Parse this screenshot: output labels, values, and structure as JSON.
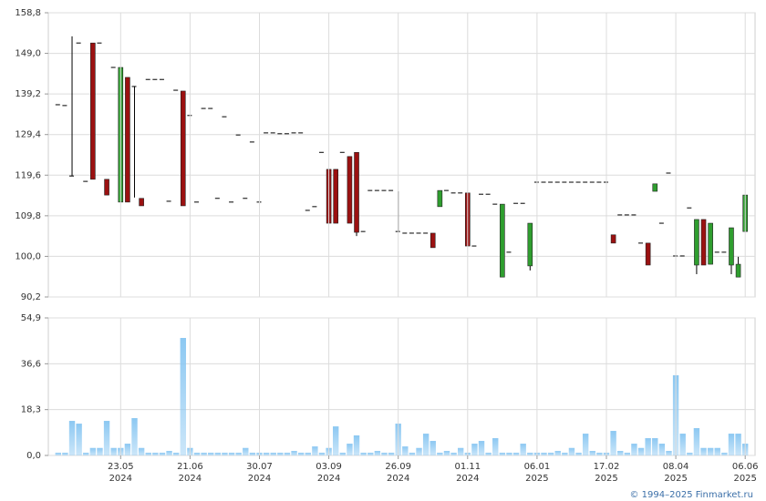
{
  "chart_data": [
    {
      "type": "candlestick",
      "open": [
        136.6,
        136.4,
        119.4,
        151.5,
        118.1,
        151.5,
        151.5,
        118.6,
        145.6,
        113.1,
        143.2,
        141.0,
        114.0,
        142.7,
        142.7,
        142.7,
        113.3,
        140.1,
        139.9,
        134.0,
        113.1,
        135.7,
        135.7,
        114.0,
        133.7,
        113.1,
        129.3,
        114.0,
        127.6,
        113.1,
        129.8,
        129.8,
        129.6,
        129.6,
        129.8,
        129.8,
        111.1,
        112.0,
        125.1,
        121.0,
        121.0,
        125.1,
        124.1,
        125.1,
        106.0,
        115.9,
        115.9,
        115.9,
        115.9,
        106.0,
        105.6,
        105.6,
        105.6,
        105.6,
        105.6,
        112.0,
        115.9,
        115.3,
        115.3,
        115.3,
        102.5,
        115.0,
        115.0,
        112.6,
        95.0,
        101.0,
        112.8,
        112.8,
        97.7,
        117.9,
        117.9,
        117.9,
        117.9,
        117.9,
        117.9,
        117.9,
        117.9,
        117.9,
        117.9,
        117.9,
        105.2,
        110.0,
        110.0,
        110.0,
        103.2,
        103.2,
        115.7,
        108.0,
        120.1,
        100.1,
        100.1,
        111.7,
        97.9,
        108.9,
        98.1,
        101.0,
        101.0,
        97.9,
        95.0,
        106.0
      ],
      "high": [
        136.6,
        136.4,
        153.1,
        151.5,
        118.1,
        151.5,
        151.5,
        118.6,
        145.6,
        145.6,
        143.2,
        141.0,
        114.0,
        142.7,
        142.7,
        142.7,
        113.3,
        140.1,
        139.9,
        134.0,
        113.1,
        135.7,
        135.7,
        114.0,
        133.7,
        113.1,
        129.3,
        114.0,
        127.6,
        113.1,
        129.8,
        129.8,
        129.6,
        129.6,
        129.8,
        129.8,
        111.1,
        112.0,
        125.1,
        121.0,
        121.0,
        125.1,
        124.1,
        125.1,
        106.0,
        115.9,
        115.9,
        115.9,
        115.9,
        115.7,
        105.6,
        105.6,
        105.6,
        105.6,
        105.6,
        115.9,
        115.9,
        115.3,
        115.3,
        115.3,
        102.5,
        115.0,
        115.0,
        112.6,
        112.6,
        101.0,
        112.8,
        112.8,
        108.0,
        117.9,
        117.9,
        117.9,
        117.9,
        117.9,
        117.9,
        117.9,
        117.9,
        117.9,
        117.9,
        117.9,
        105.2,
        110.0,
        110.0,
        110.0,
        103.2,
        103.2,
        117.5,
        108.0,
        120.1,
        100.1,
        100.1,
        111.7,
        108.9,
        108.9,
        108.0,
        101.0,
        101.0,
        106.9,
        99.9,
        114.8
      ],
      "low": [
        136.6,
        136.4,
        119.4,
        151.5,
        118.1,
        118.6,
        151.5,
        114.8,
        145.6,
        113.1,
        113.1,
        114.2,
        112.2,
        142.7,
        142.7,
        142.7,
        113.3,
        140.1,
        112.2,
        134.0,
        113.1,
        135.7,
        135.7,
        114.0,
        133.7,
        113.1,
        129.3,
        114.0,
        127.6,
        113.1,
        129.8,
        129.8,
        129.6,
        129.6,
        129.8,
        129.8,
        111.1,
        112.0,
        125.1,
        108.0,
        108.0,
        125.1,
        108.0,
        104.9,
        106.0,
        115.9,
        115.9,
        115.9,
        115.9,
        106.0,
        105.6,
        105.6,
        105.6,
        105.6,
        102.1,
        112.0,
        115.9,
        115.3,
        115.3,
        102.5,
        102.5,
        115.0,
        115.0,
        112.6,
        95.0,
        101.0,
        112.8,
        112.8,
        96.6,
        117.9,
        117.9,
        117.9,
        117.9,
        117.9,
        117.9,
        117.9,
        117.9,
        117.9,
        117.9,
        117.9,
        103.2,
        110.0,
        110.0,
        110.0,
        103.2,
        97.9,
        115.7,
        108.0,
        120.1,
        100.1,
        100.1,
        111.7,
        95.7,
        97.9,
        98.1,
        101.0,
        101.0,
        95.7,
        95.0,
        106.0
      ],
      "close": [
        136.6,
        136.4,
        119.4,
        151.5,
        118.1,
        118.6,
        151.5,
        114.8,
        145.6,
        145.6,
        113.1,
        141.0,
        112.2,
        142.7,
        142.7,
        142.7,
        113.3,
        140.1,
        112.2,
        134.0,
        113.1,
        135.7,
        135.7,
        114.0,
        133.7,
        113.1,
        129.3,
        114.0,
        127.6,
        113.1,
        129.8,
        129.8,
        129.6,
        129.6,
        129.8,
        129.8,
        111.1,
        112.0,
        125.1,
        108.0,
        108.0,
        125.1,
        108.0,
        105.8,
        106.0,
        115.9,
        115.9,
        115.9,
        115.9,
        106.0,
        105.6,
        105.6,
        105.6,
        105.6,
        102.1,
        115.9,
        115.9,
        115.3,
        115.3,
        102.5,
        102.5,
        115.0,
        115.0,
        112.6,
        112.6,
        101.0,
        112.8,
        112.8,
        108.0,
        117.9,
        117.9,
        117.9,
        117.9,
        117.9,
        117.9,
        117.9,
        117.9,
        117.9,
        117.9,
        117.9,
        103.2,
        110.0,
        110.0,
        110.0,
        103.2,
        97.9,
        117.5,
        108.0,
        120.1,
        100.1,
        100.1,
        111.7,
        108.9,
        97.9,
        108.0,
        101.0,
        101.0,
        106.9,
        98.1,
        114.8
      ],
      "up_color": "#2f9e2f",
      "down_color": "#9b1111",
      "ylim": [
        90.2,
        158.8
      ],
      "yticks": [
        {
          "value": 90.2,
          "label": "90,2"
        },
        {
          "value": 100.0,
          "label": "100,0"
        },
        {
          "value": 109.8,
          "label": "109,8"
        },
        {
          "value": 119.6,
          "label": "119,6"
        },
        {
          "value": 129.4,
          "label": "129,4"
        },
        {
          "value": 139.2,
          "label": "139,2"
        },
        {
          "value": 149.0,
          "label": "149,0"
        },
        {
          "value": 158.8,
          "label": "158,8"
        }
      ],
      "grid": true
    },
    {
      "type": "bar",
      "categories": [
        null,
        null,
        null,
        null,
        null,
        null,
        null,
        null,
        null,
        "23.05",
        null,
        null,
        null,
        null,
        null,
        null,
        null,
        null,
        null,
        "21.06",
        null,
        null,
        null,
        null,
        null,
        null,
        null,
        null,
        null,
        "30.07",
        null,
        null,
        null,
        null,
        null,
        null,
        null,
        null,
        null,
        "03.09",
        null,
        null,
        null,
        null,
        null,
        null,
        null,
        null,
        null,
        "26.09",
        null,
        null,
        null,
        null,
        null,
        null,
        null,
        null,
        null,
        "01.11",
        null,
        null,
        null,
        null,
        null,
        null,
        null,
        null,
        null,
        "06.01",
        null,
        null,
        null,
        null,
        null,
        null,
        null,
        null,
        null,
        "17.02",
        null,
        null,
        null,
        null,
        null,
        null,
        null,
        null,
        null,
        "08.04",
        null,
        null,
        null,
        null,
        null,
        null,
        null,
        null,
        null,
        "06.06"
      ],
      "years": [
        null,
        null,
        null,
        null,
        null,
        null,
        null,
        null,
        null,
        "2024",
        null,
        null,
        null,
        null,
        null,
        null,
        null,
        null,
        null,
        "2024",
        null,
        null,
        null,
        null,
        null,
        null,
        null,
        null,
        null,
        "2024",
        null,
        null,
        null,
        null,
        null,
        null,
        null,
        null,
        null,
        "2024",
        null,
        null,
        null,
        null,
        null,
        null,
        null,
        null,
        null,
        "2024",
        null,
        null,
        null,
        null,
        null,
        null,
        null,
        null,
        null,
        "2024",
        null,
        null,
        null,
        null,
        null,
        null,
        null,
        null,
        null,
        "2025",
        null,
        null,
        null,
        null,
        null,
        null,
        null,
        null,
        null,
        "2025",
        null,
        null,
        null,
        null,
        null,
        null,
        null,
        null,
        null,
        "2025",
        null,
        null,
        null,
        null,
        null,
        null,
        null,
        null,
        null,
        "2025"
      ],
      "values": [
        1.1,
        1.1,
        13.8,
        12.7,
        1.1,
        3.0,
        3.0,
        13.8,
        3.0,
        3.0,
        4.7,
        14.9,
        3.0,
        1.1,
        1.1,
        1.1,
        1.8,
        1.1,
        46.9,
        3.0,
        1.1,
        1.1,
        1.1,
        1.1,
        1.1,
        1.1,
        1.1,
        3.0,
        1.1,
        1.1,
        1.1,
        1.1,
        1.1,
        1.1,
        1.8,
        1.1,
        1.1,
        3.6,
        1.1,
        3.0,
        11.6,
        1.1,
        4.7,
        8.0,
        1.1,
        1.1,
        1.8,
        1.1,
        1.1,
        12.7,
        3.6,
        1.1,
        3.0,
        8.7,
        5.8,
        1.1,
        1.8,
        1.1,
        3.0,
        1.1,
        4.7,
        5.8,
        1.1,
        6.9,
        1.1,
        1.1,
        1.1,
        4.7,
        1.1,
        1.1,
        1.1,
        1.1,
        1.8,
        1.1,
        3.0,
        1.1,
        8.7,
        1.8,
        1.1,
        1.1,
        9.8,
        1.8,
        1.1,
        4.7,
        3.0,
        6.9,
        6.9,
        4.7,
        1.8,
        32.0,
        8.7,
        1.1,
        10.9,
        3.0,
        3.0,
        3.0,
        1.1,
        8.7,
        8.7,
        4.7
      ],
      "color": "#8cc8f2",
      "ylim": [
        0,
        54.9
      ],
      "yticks": [
        {
          "value": 0,
          "label": "0,0"
        },
        {
          "value": 18.3,
          "label": "18,3"
        },
        {
          "value": 36.6,
          "label": "36,6"
        },
        {
          "value": 54.9,
          "label": "54,9"
        }
      ],
      "grid": true
    }
  ],
  "footer": "© 1994–2025 Finmarket.ru"
}
